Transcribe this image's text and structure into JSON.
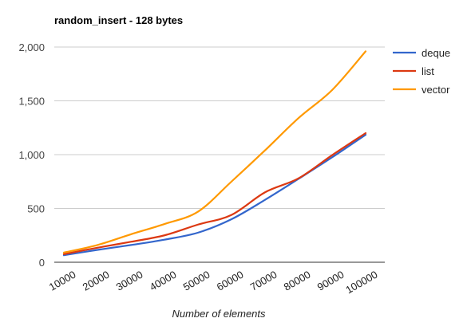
{
  "chart_data": {
    "type": "line",
    "title": "random_insert - 128 bytes",
    "xlabel": "Number of elements",
    "ylabel": "",
    "categories": [
      "10000",
      "20000",
      "30000",
      "40000",
      "50000",
      "60000",
      "70000",
      "80000",
      "90000",
      "100000"
    ],
    "ylim": [
      0,
      2000
    ],
    "yticks": [
      0,
      500,
      1000,
      1500,
      2000
    ],
    "ytick_labels": [
      "0",
      "500",
      "1,000",
      "1,500",
      "2,000"
    ],
    "grid": true,
    "legend_position": "right",
    "series": [
      {
        "name": "deque",
        "color": "#3366cc",
        "values": [
          65,
          115,
          160,
          210,
          275,
          400,
          580,
          775,
          975,
          1185
        ]
      },
      {
        "name": "list",
        "color": "#dc3912",
        "values": [
          75,
          135,
          190,
          250,
          350,
          440,
          650,
          780,
          995,
          1200
        ]
      },
      {
        "name": "vector",
        "color": "#ff9900",
        "values": [
          90,
          160,
          260,
          355,
          470,
          750,
          1040,
          1340,
          1600,
          1960
        ]
      }
    ]
  }
}
